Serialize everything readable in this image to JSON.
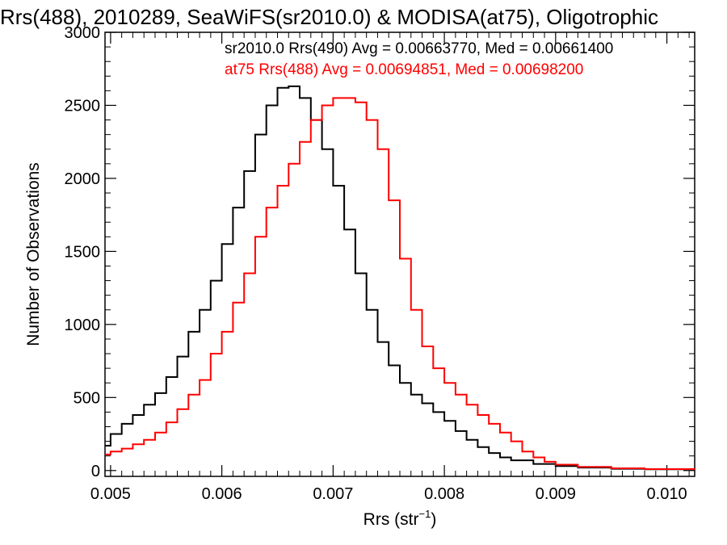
{
  "chart_data": {
    "type": "line",
    "title": "Rrs(488), 2010289, SeaWiFS(sr2010.0) & MODISA(at75), Oligotrophic",
    "xlabel": "Rrs (str",
    "xlabel_superscript": "−1",
    "xlabel_suffix": ")",
    "ylabel": "Number of Observations",
    "xlim": [
      0.00495,
      0.01025
    ],
    "ylim": [
      -40,
      3000
    ],
    "xticks": [
      0.005,
      0.006,
      0.007,
      0.008,
      0.009,
      0.01
    ],
    "xtick_labels": [
      "0.005",
      "0.006",
      "0.007",
      "0.008",
      "0.009",
      "0.010"
    ],
    "yticks": [
      0,
      500,
      1000,
      1500,
      2000,
      2500,
      3000
    ],
    "ytick_labels": [
      "0",
      "500",
      "1000",
      "1500",
      "2000",
      "2500",
      "3000"
    ],
    "legend_placement": "top-right",
    "series": [
      {
        "name": "sr2010.0 Rrs(490) Avg = 0.00663770, Med = 0.00661400",
        "color": "#000000",
        "x": [
          0.00495,
          0.005,
          0.0051,
          0.0052,
          0.0053,
          0.0054,
          0.0055,
          0.0056,
          0.0057,
          0.0058,
          0.0059,
          0.006,
          0.0061,
          0.0062,
          0.0063,
          0.0064,
          0.0065,
          0.0066,
          0.0067,
          0.0068,
          0.0069,
          0.007,
          0.0071,
          0.0072,
          0.0073,
          0.0074,
          0.0075,
          0.0076,
          0.0077,
          0.0078,
          0.0079,
          0.008,
          0.0081,
          0.0082,
          0.0083,
          0.0084,
          0.0085,
          0.0086,
          0.0088,
          0.009,
          0.0092,
          0.0095,
          0.0098,
          0.01025
        ],
        "y": [
          170,
          250,
          320,
          380,
          450,
          530,
          640,
          780,
          950,
          1100,
          1300,
          1550,
          1800,
          2050,
          2300,
          2500,
          2620,
          2630,
          2550,
          2400,
          2200,
          1950,
          1650,
          1350,
          1100,
          880,
          720,
          600,
          520,
          460,
          400,
          340,
          270,
          210,
          160,
          120,
          90,
          70,
          45,
          30,
          20,
          12,
          8,
          5
        ]
      },
      {
        "name": "at75 Rrs(488) Avg = 0.00694851, Med = 0.00698200",
        "color": "#ff0000",
        "x": [
          0.00495,
          0.005,
          0.0051,
          0.0052,
          0.0053,
          0.0054,
          0.0055,
          0.0056,
          0.0057,
          0.0058,
          0.0059,
          0.006,
          0.0061,
          0.0062,
          0.0063,
          0.0064,
          0.0065,
          0.0066,
          0.0067,
          0.0068,
          0.0069,
          0.007,
          0.0071,
          0.0072,
          0.0073,
          0.0074,
          0.0075,
          0.0076,
          0.0077,
          0.0078,
          0.0079,
          0.008,
          0.0081,
          0.0082,
          0.0083,
          0.0084,
          0.0085,
          0.0086,
          0.0087,
          0.0088,
          0.0089,
          0.009,
          0.0092,
          0.0095,
          0.0098,
          0.01025
        ],
        "y": [
          110,
          130,
          150,
          180,
          210,
          260,
          330,
          420,
          520,
          620,
          800,
          950,
          1150,
          1350,
          1600,
          1800,
          1950,
          2100,
          2250,
          2400,
          2500,
          2550,
          2550,
          2520,
          2400,
          2200,
          1850,
          1450,
          1100,
          850,
          700,
          600,
          520,
          450,
          380,
          320,
          260,
          200,
          130,
          90,
          60,
          40,
          25,
          15,
          10,
          6
        ]
      }
    ]
  }
}
